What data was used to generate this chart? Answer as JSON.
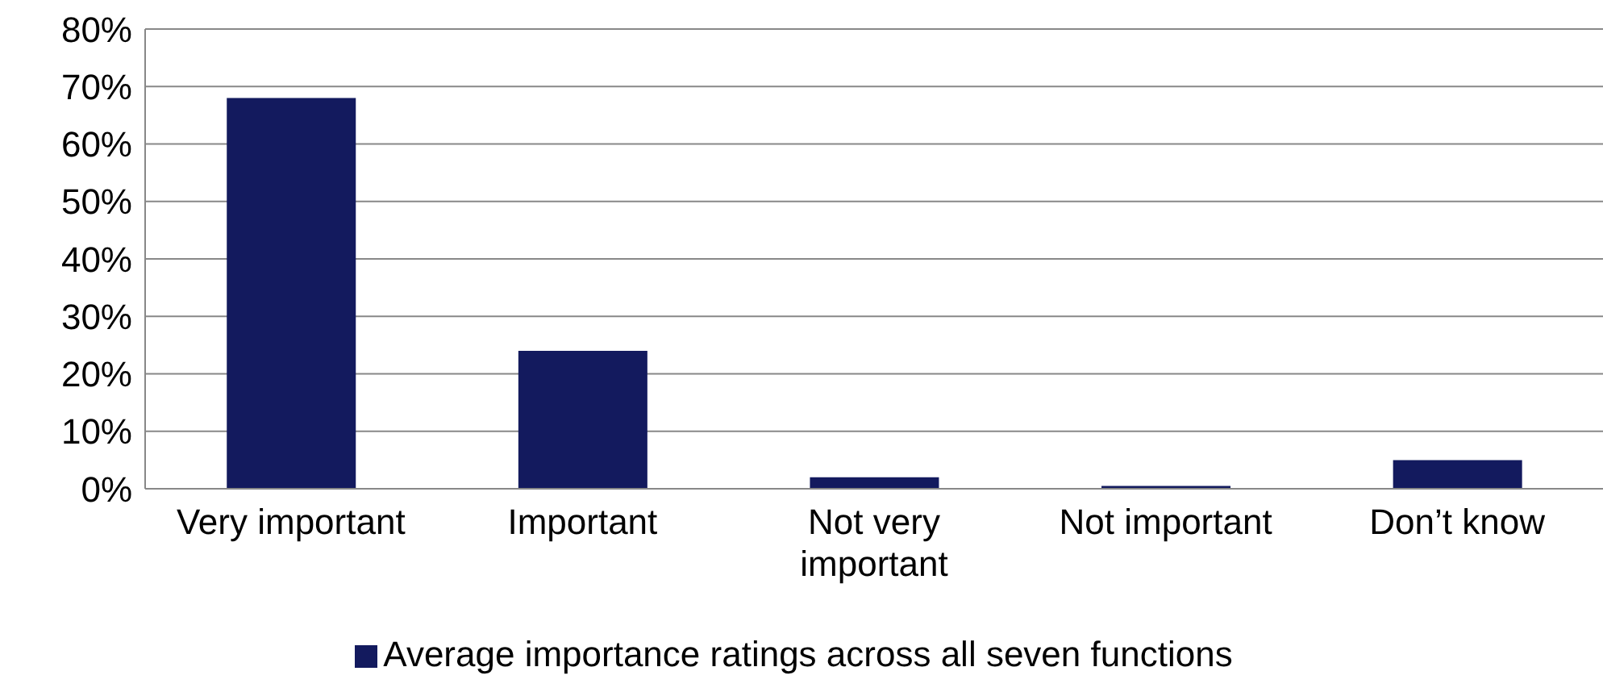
{
  "chart_data": {
    "type": "bar",
    "categories": [
      "Very important",
      "Important",
      "Not very important",
      "Not important",
      "Don’t know"
    ],
    "series": [
      {
        "name": "Average importance ratings across all seven functions",
        "color": "#131a5e",
        "values": [
          68,
          24,
          2,
          0.5,
          5
        ]
      }
    ],
    "ylim": [
      0,
      80
    ],
    "yticks": [
      {
        "value": 0,
        "label": "0%"
      },
      {
        "value": 10,
        "label": "10%"
      },
      {
        "value": 20,
        "label": "20%"
      },
      {
        "value": 30,
        "label": "30%"
      },
      {
        "value": 40,
        "label": "40%"
      },
      {
        "value": 50,
        "label": "50%"
      },
      {
        "value": 60,
        "label": "60%"
      },
      {
        "value": 70,
        "label": "70%"
      },
      {
        "value": 80,
        "label": "80%"
      }
    ],
    "grid": "y",
    "legend": "bottom"
  }
}
